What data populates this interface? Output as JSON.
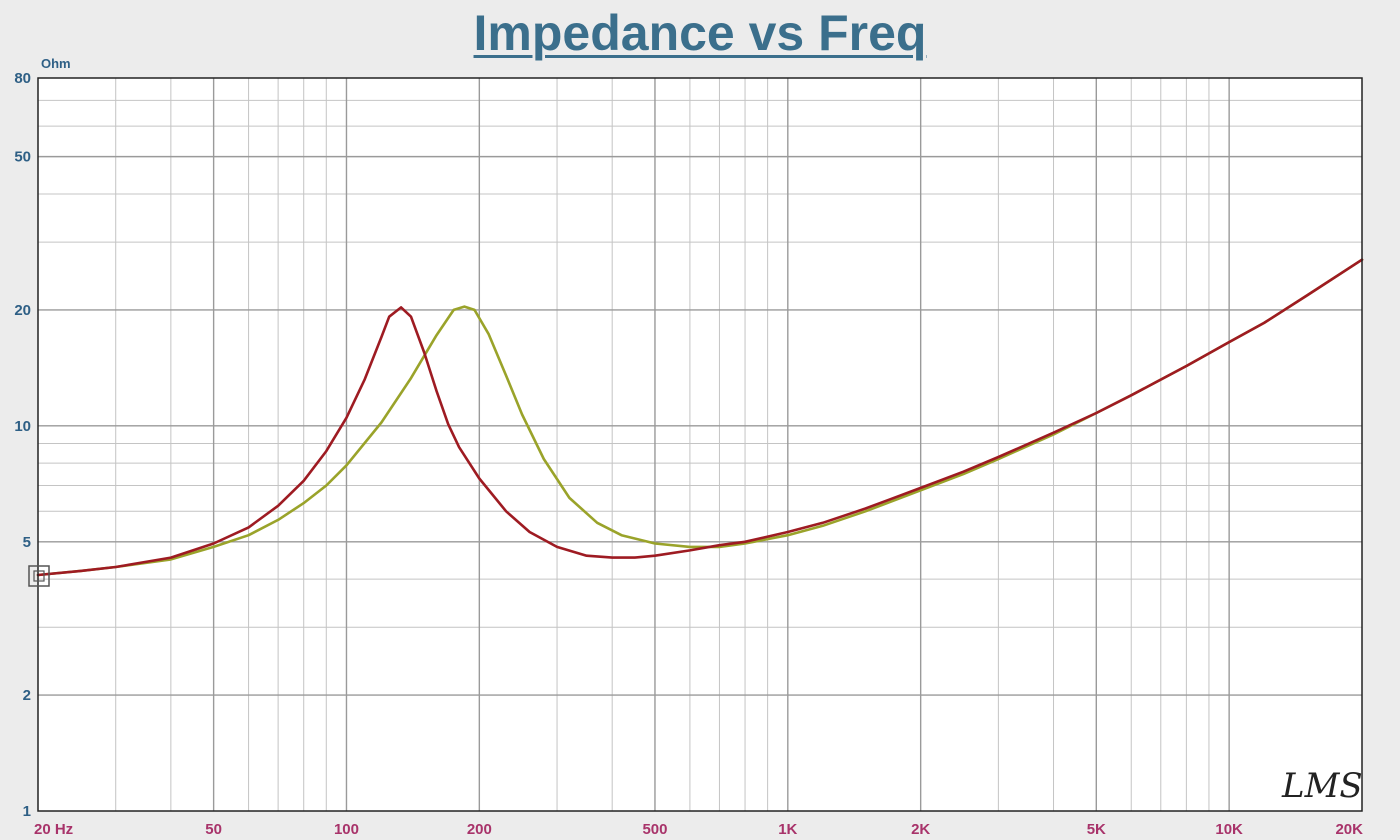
{
  "chart_data": {
    "type": "line",
    "title": "Impedance vs Freq",
    "ylabel": "Ohm",
    "xlabel": "",
    "x_scale": "log",
    "y_scale": "log",
    "xlim": [
      20,
      20000
    ],
    "ylim": [
      1,
      80
    ],
    "grid": true,
    "x_ticks": [
      {
        "value": 20,
        "label": "20 Hz"
      },
      {
        "value": 50,
        "label": "50"
      },
      {
        "value": 100,
        "label": "100"
      },
      {
        "value": 200,
        "label": "200"
      },
      {
        "value": 500,
        "label": "500"
      },
      {
        "value": 1000,
        "label": "1K"
      },
      {
        "value": 2000,
        "label": "2K"
      },
      {
        "value": 5000,
        "label": "5K"
      },
      {
        "value": 10000,
        "label": "10K"
      },
      {
        "value": 20000,
        "label": "20K"
      }
    ],
    "y_ticks": [
      {
        "value": 1,
        "label": "1"
      },
      {
        "value": 2,
        "label": "2"
      },
      {
        "value": 5,
        "label": "5"
      },
      {
        "value": 10,
        "label": "10"
      },
      {
        "value": 20,
        "label": "20"
      },
      {
        "value": 50,
        "label": "50"
      },
      {
        "value": 80,
        "label": "80"
      }
    ],
    "series": [
      {
        "color": "#9e1b22",
        "points": [
          [
            20,
            4.1
          ],
          [
            25,
            4.2
          ],
          [
            30,
            4.3
          ],
          [
            40,
            4.55
          ],
          [
            50,
            4.95
          ],
          [
            60,
            5.45
          ],
          [
            70,
            6.2
          ],
          [
            80,
            7.2
          ],
          [
            90,
            8.6
          ],
          [
            100,
            10.5
          ],
          [
            110,
            13.2
          ],
          [
            120,
            17
          ],
          [
            125,
            19.2
          ],
          [
            133,
            20.3
          ],
          [
            140,
            19.2
          ],
          [
            150,
            15.5
          ],
          [
            160,
            12.3
          ],
          [
            170,
            10.1
          ],
          [
            180,
            8.8
          ],
          [
            200,
            7.3
          ],
          [
            230,
            6.0
          ],
          [
            260,
            5.3
          ],
          [
            300,
            4.85
          ],
          [
            350,
            4.6
          ],
          [
            400,
            4.55
          ],
          [
            450,
            4.55
          ],
          [
            500,
            4.6
          ],
          [
            600,
            4.75
          ],
          [
            700,
            4.9
          ],
          [
            800,
            5.0
          ],
          [
            1000,
            5.3
          ],
          [
            1200,
            5.6
          ],
          [
            1500,
            6.1
          ],
          [
            2000,
            6.9
          ],
          [
            2500,
            7.6
          ],
          [
            3000,
            8.3
          ],
          [
            4000,
            9.6
          ],
          [
            5000,
            10.8
          ],
          [
            6000,
            12.0
          ],
          [
            8000,
            14.3
          ],
          [
            10000,
            16.5
          ],
          [
            12000,
            18.5
          ],
          [
            15000,
            21.8
          ],
          [
            20000,
            27.0
          ]
        ]
      },
      {
        "color": "#9aa32a",
        "points": [
          [
            20,
            4.1
          ],
          [
            25,
            4.2
          ],
          [
            30,
            4.3
          ],
          [
            40,
            4.5
          ],
          [
            50,
            4.85
          ],
          [
            60,
            5.2
          ],
          [
            70,
            5.7
          ],
          [
            80,
            6.3
          ],
          [
            90,
            7.0
          ],
          [
            100,
            7.9
          ],
          [
            120,
            10.2
          ],
          [
            140,
            13.3
          ],
          [
            160,
            17.2
          ],
          [
            175,
            20.0
          ],
          [
            185,
            20.4
          ],
          [
            195,
            20.0
          ],
          [
            210,
            17.3
          ],
          [
            230,
            13.5
          ],
          [
            250,
            10.7
          ],
          [
            280,
            8.2
          ],
          [
            320,
            6.5
          ],
          [
            370,
            5.6
          ],
          [
            420,
            5.2
          ],
          [
            500,
            4.95
          ],
          [
            600,
            4.85
          ],
          [
            700,
            4.85
          ],
          [
            800,
            4.95
          ],
          [
            1000,
            5.2
          ],
          [
            1200,
            5.5
          ],
          [
            1500,
            6.0
          ],
          [
            2000,
            6.8
          ],
          [
            2500,
            7.5
          ],
          [
            3000,
            8.2
          ],
          [
            4000,
            9.5
          ],
          [
            5000,
            10.8
          ],
          [
            6000,
            12.0
          ],
          [
            8000,
            14.3
          ],
          [
            10000,
            16.5
          ],
          [
            12000,
            18.5
          ],
          [
            15000,
            21.8
          ],
          [
            20000,
            27.0
          ]
        ]
      }
    ],
    "logo_text": "LMS"
  }
}
